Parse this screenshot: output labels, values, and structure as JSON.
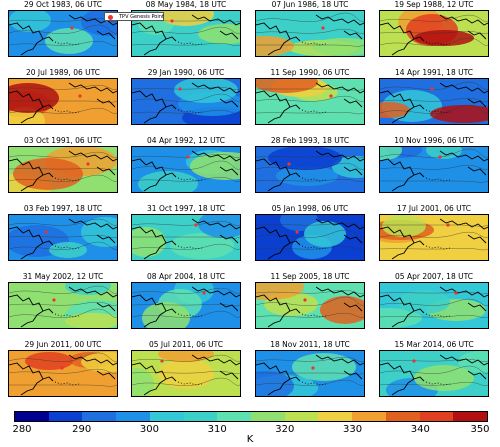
{
  "legend": {
    "label": "TPV Genesis Point"
  },
  "panels": [
    {
      "title": "29 Oct 1983, 06 UTC",
      "palette": [
        "#1e90e8",
        "#32c8d8",
        "#5ee0b0",
        "#1f6fe0"
      ]
    },
    {
      "title": "08 May 1984, 18 UTC",
      "palette": [
        "#3dd0c8",
        "#8fe070",
        "#5ee0b0",
        "#f0d040"
      ]
    },
    {
      "title": "07 Jun 1986, 18 UTC",
      "palette": [
        "#3dd0c8",
        "#bde050",
        "#8fe070",
        "#f0a030"
      ]
    },
    {
      "title": "19 Sep 1988, 12 UTC",
      "palette": [
        "#bde050",
        "#f0a030",
        "#e04020",
        "#b01010"
      ]
    },
    {
      "title": "20 Jul 1989, 06 UTC",
      "palette": [
        "#f0a030",
        "#e06020",
        "#f0d040",
        "#b01010"
      ]
    },
    {
      "title": "29 Jan 1990, 06 UTC",
      "palette": [
        "#1f6fe0",
        "#0a3fd0",
        "#1e90e8",
        "#32c8d8"
      ]
    },
    {
      "title": "11 Sep 1990, 06 UTC",
      "palette": [
        "#5ee0b0",
        "#bde050",
        "#f0d040",
        "#e06020"
      ]
    },
    {
      "title": "14 Apr 1991, 18 UTC",
      "palette": [
        "#1f6fe0",
        "#32c8d8",
        "#e06020",
        "#b01010"
      ]
    },
    {
      "title": "03 Oct 1991, 06 UTC",
      "palette": [
        "#8fe070",
        "#f0d040",
        "#f0a030",
        "#e06020"
      ]
    },
    {
      "title": "04 Apr 1992, 12 UTC",
      "palette": [
        "#1e90e8",
        "#32c8d8",
        "#3dd0c8",
        "#8fe070"
      ]
    },
    {
      "title": "28 Feb 1993, 18 UTC",
      "palette": [
        "#1f6fe0",
        "#1e90e8",
        "#32c8d8",
        "#0a3fd0"
      ]
    },
    {
      "title": "10 Nov 1996, 06 UTC",
      "palette": [
        "#1e90e8",
        "#1f6fe0",
        "#3dd0c8",
        "#5ee0b0"
      ]
    },
    {
      "title": "03 Feb 1997, 18 UTC",
      "palette": [
        "#1e90e8",
        "#32c8d8",
        "#1f6fe0",
        "#3dd0c8"
      ]
    },
    {
      "title": "31 Oct 1997, 18 UTC",
      "palette": [
        "#3dd0c8",
        "#5ee0b0",
        "#1e90e8",
        "#8fe070"
      ]
    },
    {
      "title": "05 Jan 1998, 06 UTC",
      "palette": [
        "#0a3fd0",
        "#1f6fe0",
        "#1e90e8",
        "#32c8d8"
      ]
    },
    {
      "title": "17 Jul 2001, 06 UTC",
      "palette": [
        "#f0d040",
        "#f0a030",
        "#e06020",
        "#bde050"
      ]
    },
    {
      "title": "31 May 2002, 12 UTC",
      "palette": [
        "#8fe070",
        "#5ee0b0",
        "#bde050",
        "#3dd0c8"
      ]
    },
    {
      "title": "08 Apr 2004, 18 UTC",
      "palette": [
        "#1e90e8",
        "#32c8d8",
        "#5ee0b0",
        "#8fe070"
      ]
    },
    {
      "title": "11 Sep 2005, 18 UTC",
      "palette": [
        "#5ee0b0",
        "#bde050",
        "#f0a030",
        "#e06020"
      ]
    },
    {
      "title": "05 Apr 2007, 18 UTC",
      "palette": [
        "#32c8d8",
        "#5ee0b0",
        "#8fe070",
        "#3dd0c8"
      ]
    },
    {
      "title": "29 Jun 2011, 00 UTC",
      "palette": [
        "#f0a030",
        "#e06020",
        "#e04020",
        "#f0d040"
      ]
    },
    {
      "title": "05 Jul 2011, 06 UTC",
      "palette": [
        "#bde050",
        "#f0d040",
        "#8fe070",
        "#f0a030"
      ]
    },
    {
      "title": "18 Nov 2011, 18 UTC",
      "palette": [
        "#1e90e8",
        "#32c8d8",
        "#5ee0b0",
        "#1f6fe0"
      ]
    },
    {
      "title": "15 Mar 2014, 06 UTC",
      "palette": [
        "#3dd0c8",
        "#5ee0b0",
        "#1e90e8",
        "#8fe070"
      ]
    }
  ],
  "colorbar": {
    "colors": [
      "#000090",
      "#0a3fd0",
      "#1f6fe0",
      "#1e90e8",
      "#32c8d8",
      "#3dd0c8",
      "#5ee0b0",
      "#8fe070",
      "#bde050",
      "#f0d040",
      "#f0a030",
      "#e06020",
      "#e04020",
      "#b01010"
    ],
    "ticks": [
      "280",
      "290",
      "300",
      "310",
      "320",
      "330",
      "340",
      "350"
    ],
    "range": [
      280,
      350
    ],
    "unit": "K"
  },
  "chart_data": {
    "type": "heatmap",
    "layout": "6 rows x 4 columns of map panels",
    "panel_titles": [
      "29 Oct 1983, 06 UTC",
      "08 May 1984, 18 UTC",
      "07 Jun 1986, 18 UTC",
      "19 Sep 1988, 12 UTC",
      "20 Jul 1989, 06 UTC",
      "29 Jan 1990, 06 UTC",
      "11 Sep 1990, 06 UTC",
      "14 Apr 1991, 18 UTC",
      "03 Oct 1991, 06 UTC",
      "04 Apr 1992, 12 UTC",
      "28 Feb 1993, 18 UTC",
      "10 Nov 1996, 06 UTC",
      "03 Feb 1997, 18 UTC",
      "31 Oct 1997, 18 UTC",
      "05 Jan 1998, 06 UTC",
      "17 Jul 2001, 06 UTC",
      "31 May 2002, 12 UTC",
      "08 Apr 2004, 18 UTC",
      "11 Sep 2005, 18 UTC",
      "05 Apr 2007, 18 UTC",
      "29 Jun 2011, 00 UTC",
      "05 Jul 2011, 06 UTC",
      "18 Nov 2011, 18 UTC",
      "15 Mar 2014, 06 UTC"
    ],
    "legend": [
      "TPV Genesis Point"
    ],
    "colorbar_ticks": [
      280,
      290,
      300,
      310,
      320,
      330,
      340,
      350
    ],
    "colorbar_range": [
      280,
      350
    ],
    "unit": "K"
  }
}
